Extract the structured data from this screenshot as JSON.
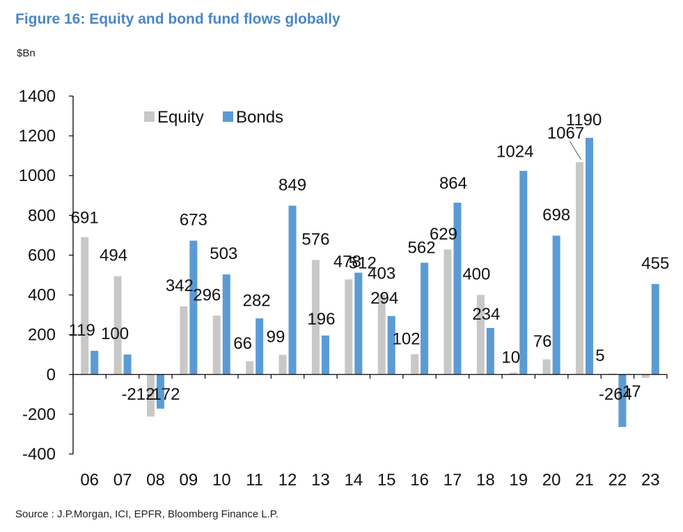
{
  "figure": {
    "title": "Figure 16: Equity and bond fund flows globally",
    "unit": "$Bn",
    "source": "Source : J.P.Morgan, ICI, EPFR, Bloomberg Finance L.P."
  },
  "colors": {
    "equity": "#c8c8c8",
    "bonds": "#5b9bd5",
    "title": "#4a86c5",
    "axis": "#000000"
  },
  "chart_data": {
    "type": "bar",
    "title": "Figure 16: Equity and bond fund flows globally",
    "ylabel": "$Bn",
    "xlabel": "",
    "ylim": [
      -400,
      1400
    ],
    "yticks": [
      1400,
      1200,
      1000,
      800,
      600,
      400,
      200,
      0,
      -200,
      -400
    ],
    "categories": [
      "06",
      "07",
      "08",
      "09",
      "10",
      "11",
      "12",
      "13",
      "14",
      "15",
      "16",
      "17",
      "18",
      "19",
      "20",
      "21",
      "22",
      "23"
    ],
    "series": [
      {
        "name": "Equity",
        "color": "#c8c8c8",
        "values": [
          691,
          494,
          -212,
          342,
          296,
          66,
          99,
          576,
          478,
          403,
          102,
          629,
          400,
          10,
          76,
          1067,
          5,
          -17
        ]
      },
      {
        "name": "Bonds",
        "color": "#5b9bd5",
        "values": [
          119,
          100,
          -172,
          673,
          503,
          282,
          849,
          196,
          512,
          294,
          562,
          864,
          234,
          1024,
          698,
          1190,
          -264,
          455
        ]
      }
    ],
    "legend": {
      "position": "top-left"
    },
    "grid": false
  }
}
